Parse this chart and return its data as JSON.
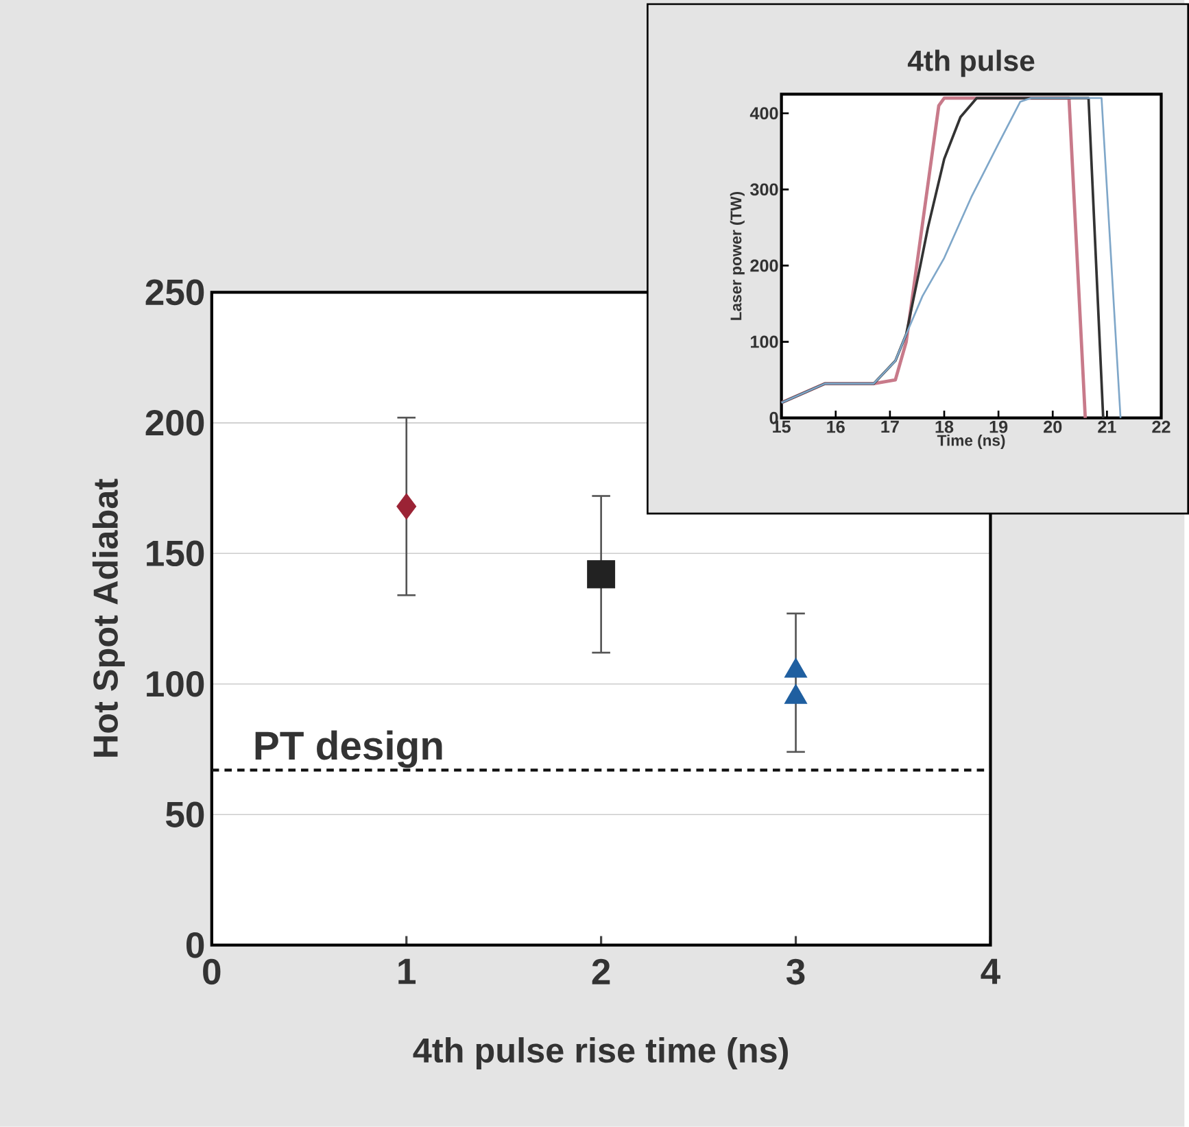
{
  "chart_data": [
    {
      "type": "scatter",
      "xlabel": "4th pulse rise time (ns)",
      "ylabel": "Hot Spot Adiabat",
      "xlim": [
        0,
        4
      ],
      "xticks": [
        0,
        1,
        2,
        3,
        4
      ],
      "ylim": [
        0,
        250
      ],
      "yticks": [
        0,
        50,
        100,
        150,
        200,
        250
      ],
      "grid": "y",
      "series": [
        {
          "color": "#9b2335",
          "marker": "diamond",
          "x": [
            1
          ],
          "values": [
            168
          ],
          "errors": [
            34
          ]
        },
        {
          "color": "#222222",
          "marker": "square",
          "x": [
            2
          ],
          "values": [
            142
          ],
          "errors": [
            30
          ]
        },
        {
          "color": "#1f5fa0",
          "marker": "triangle",
          "x": [
            3
          ],
          "values": [
            105
          ],
          "errors": [
            [
              74,
              127
            ]
          ]
        },
        {
          "color": "#1f5fa0",
          "marker": "triangle",
          "x": [
            3
          ],
          "values": [
            95
          ]
        }
      ],
      "ref_lines": [
        {
          "axis": "y",
          "value": 67,
          "label": "PT design",
          "color": "#111111",
          "line_style": "dashed"
        }
      ]
    },
    {
      "type": "line",
      "title": "4th pulse",
      "xlabel": "Time (ns)",
      "ylabel": "Laser power (TW)",
      "xlim": [
        15,
        22
      ],
      "xticks": [
        15,
        16,
        17,
        18,
        19,
        20,
        21,
        22
      ],
      "ylim": [
        0,
        425
      ],
      "yticks": [
        0,
        100,
        200,
        300,
        400
      ],
      "grid": false,
      "marker": "none",
      "series": [
        {
          "color": "#c87a8a",
          "x": [
            15,
            15.8,
            16.7,
            17.1,
            17.3,
            17.9,
            18.0,
            20.3,
            20.6
          ],
          "values": [
            20,
            45,
            45,
            50,
            100,
            410,
            420,
            420,
            0
          ]
        },
        {
          "color": "#333333",
          "x": [
            15,
            15.8,
            16.7,
            17.1,
            17.3,
            17.56,
            17.7,
            18.0,
            18.3,
            18.6,
            20.66,
            20.93
          ],
          "values": [
            20,
            45,
            45,
            75,
            110,
            200,
            250,
            340,
            395,
            420,
            420,
            0
          ]
        },
        {
          "color": "#7fa7c9",
          "x": [
            15,
            15.8,
            16.7,
            17.1,
            17.3,
            17.6,
            18.0,
            18.5,
            19.0,
            19.4,
            19.6,
            20.9,
            21.25
          ],
          "values": [
            20,
            45,
            45,
            75,
            110,
            160,
            210,
            290,
            360,
            415,
            420,
            420,
            0
          ]
        }
      ]
    }
  ]
}
